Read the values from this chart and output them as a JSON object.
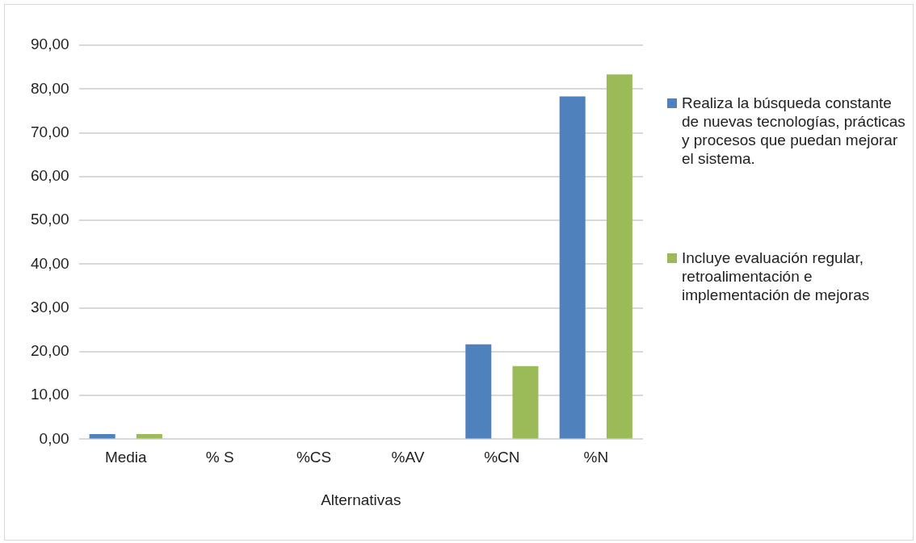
{
  "chart_data": {
    "type": "bar",
    "xlabel": "Alternativas",
    "categories": [
      "Media",
      "% S",
      "%CS",
      "%AV",
      "%CN",
      "%N"
    ],
    "series": [
      {
        "name": "Realiza la búsqueda constante de nuevas tecnologías, prácticas y procesos que puedan mejorar el sistema.",
        "color": "#4f81bd",
        "values": [
          1.2,
          0,
          0,
          0,
          21.7,
          78.3
        ]
      },
      {
        "name": "Incluye evaluación regular, retroalimentación e implementación  de mejoras",
        "color": "#9bbb59",
        "values": [
          1.2,
          0,
          0,
          0,
          16.7,
          83.3
        ]
      }
    ],
    "ylim": [
      0,
      90
    ],
    "yticks": [
      {
        "value": 0,
        "label": "0,00"
      },
      {
        "value": 10,
        "label": "10,00"
      },
      {
        "value": 20,
        "label": "20,00"
      },
      {
        "value": 30,
        "label": "30,00"
      },
      {
        "value": 40,
        "label": "40,00"
      },
      {
        "value": 50,
        "label": "50,00"
      },
      {
        "value": 60,
        "label": "60,00"
      },
      {
        "value": 70,
        "label": "70,00"
      },
      {
        "value": 80,
        "label": "80,00"
      },
      {
        "value": 90,
        "label": "90,00"
      }
    ],
    "grid": "y",
    "legend": "right"
  }
}
